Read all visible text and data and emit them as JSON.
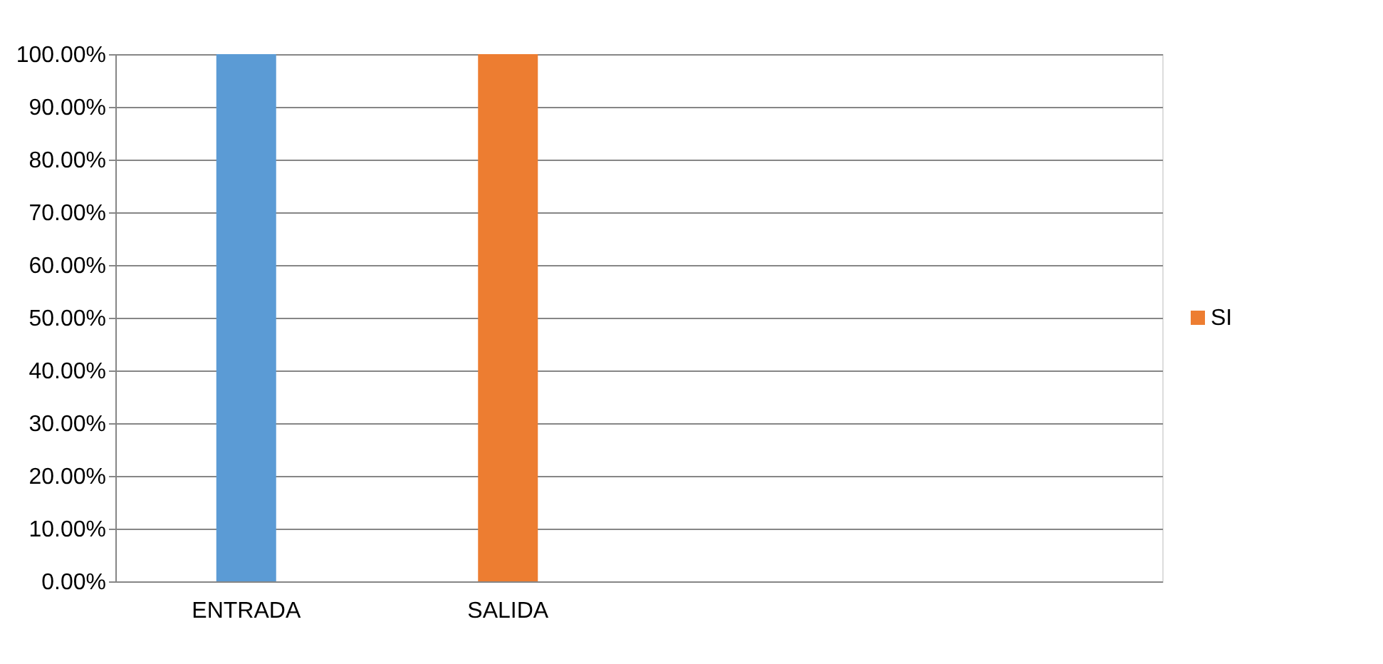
{
  "chart_data": {
    "type": "bar",
    "categories": [
      "ENTRADA",
      "SALIDA",
      null,
      null
    ],
    "series": [
      {
        "name": "SI",
        "color": "#ed7d31",
        "colors": [
          "#5b9bd5",
          "#ed7d31",
          "#ed7d31",
          "#ed7d31"
        ],
        "values": [
          100,
          100,
          null,
          null
        ]
      }
    ],
    "ylim": [
      0,
      100
    ],
    "yticks": [
      {
        "value": 0,
        "label": "0.00%"
      },
      {
        "value": 10,
        "label": "10.00%"
      },
      {
        "value": 20,
        "label": "20.00%"
      },
      {
        "value": 30,
        "label": "30.00%"
      },
      {
        "value": 40,
        "label": "40.00%"
      },
      {
        "value": 50,
        "label": "50.00%"
      },
      {
        "value": 60,
        "label": "60.00%"
      },
      {
        "value": 70,
        "label": "70.00%"
      },
      {
        "value": 80,
        "label": "80.00%"
      },
      {
        "value": 90,
        "label": "90.00%"
      },
      {
        "value": 100,
        "label": "100.00%"
      }
    ],
    "grid": "y",
    "legend": "right"
  }
}
